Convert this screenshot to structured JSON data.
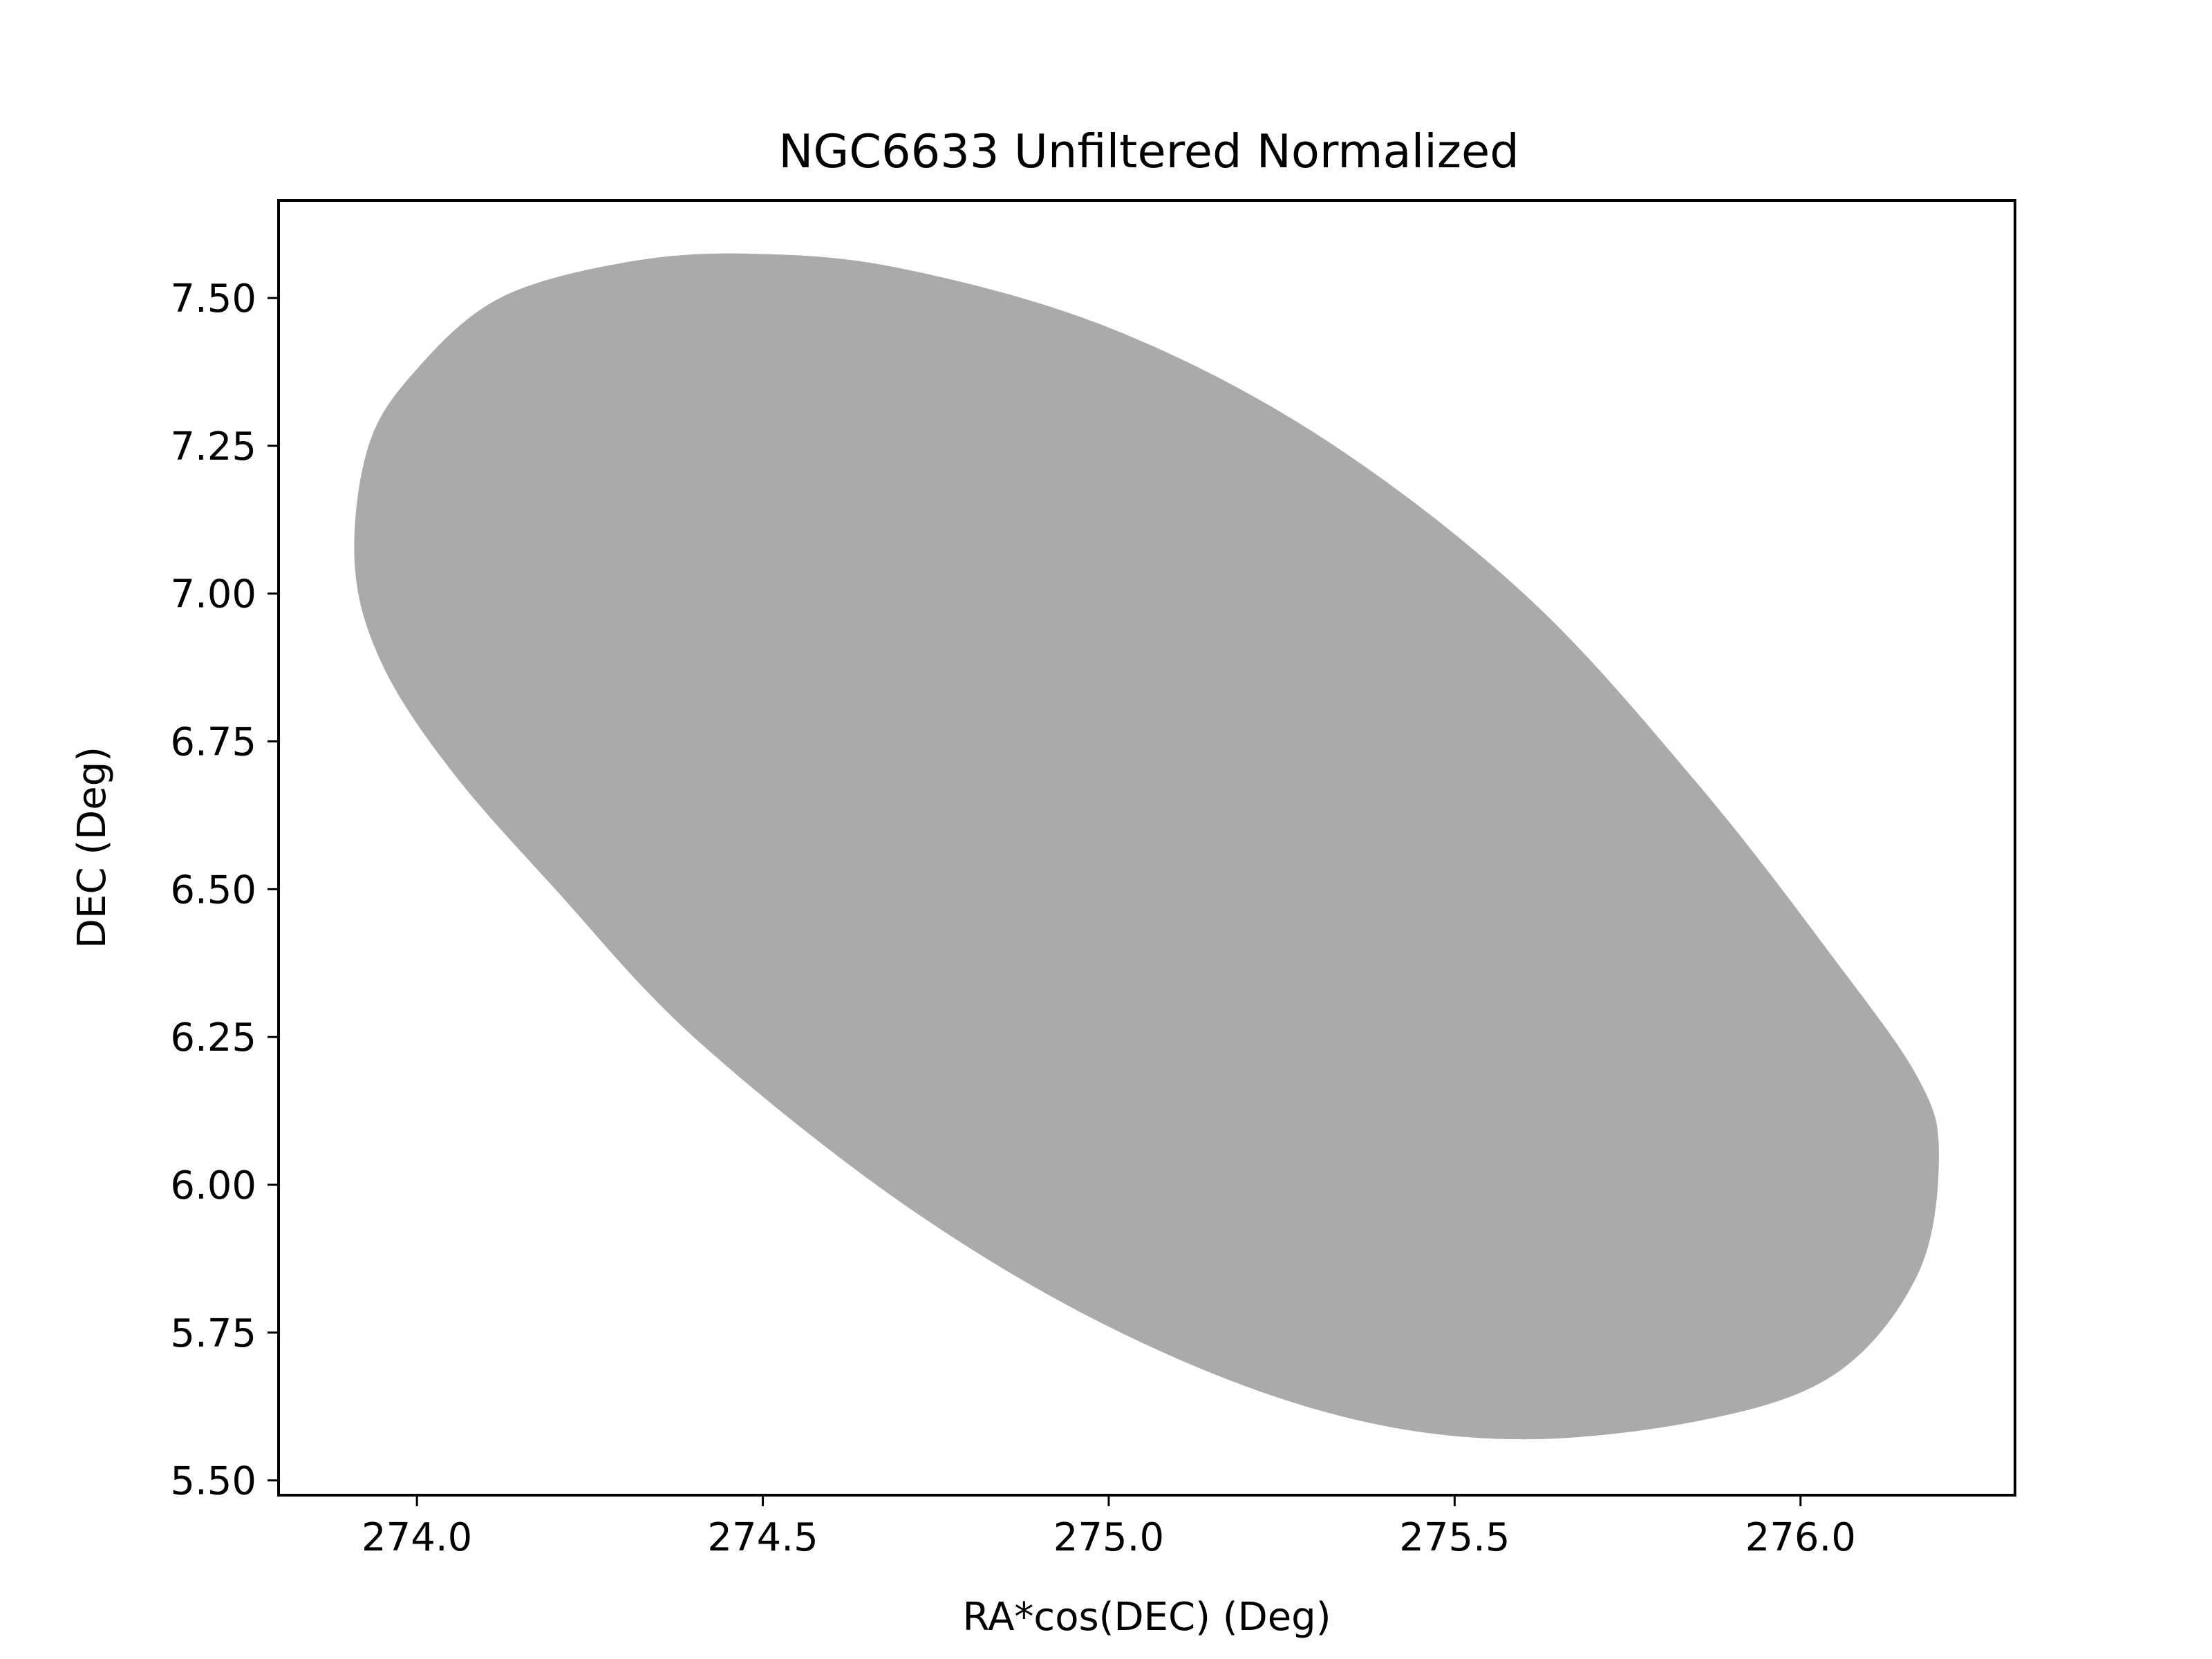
{
  "chart_data": {
    "type": "scatter",
    "title": "NGC6633 Unfiltered Normalized",
    "xlabel": "RA*cos(DEC) (Deg)",
    "ylabel": "DEC (Deg)",
    "xlim": [
      273.8,
      276.31
    ],
    "ylim": [
      5.475,
      7.665
    ],
    "x_ticks": [
      274.0,
      274.5,
      275.0,
      275.5,
      276.0
    ],
    "x_tick_labels": [
      "274.0",
      "274.5",
      "275.0",
      "275.5",
      "276.0"
    ],
    "y_ticks": [
      5.5,
      5.75,
      6.0,
      6.25,
      6.5,
      6.75,
      7.0,
      7.25,
      7.5
    ],
    "y_tick_labels": [
      "5.50",
      "5.75",
      "6.00",
      "6.25",
      "6.50",
      "6.75",
      "7.00",
      "7.25",
      "7.50"
    ],
    "grid": false,
    "legend": "none",
    "series": [
      {
        "marker_color": "#aaaaaa",
        "region_shape": "ellipse",
        "x": [
          273.91,
          273.93,
          274.0,
          274.12,
          274.3,
          274.48,
          274.7,
          275.0,
          275.3,
          275.6,
          275.85,
          276.05,
          276.17,
          276.2,
          276.17,
          276.05,
          275.85,
          275.57,
          275.3,
          275.0,
          274.7,
          274.4,
          274.2,
          274.05,
          273.95
        ],
        "y": [
          7.05,
          7.25,
          7.38,
          7.5,
          7.56,
          7.575,
          7.55,
          7.45,
          7.27,
          7.0,
          6.68,
          6.38,
          6.18,
          6.05,
          5.85,
          5.68,
          5.6,
          5.57,
          5.62,
          5.76,
          5.97,
          6.25,
          6.5,
          6.7,
          6.88
        ]
      }
    ]
  }
}
